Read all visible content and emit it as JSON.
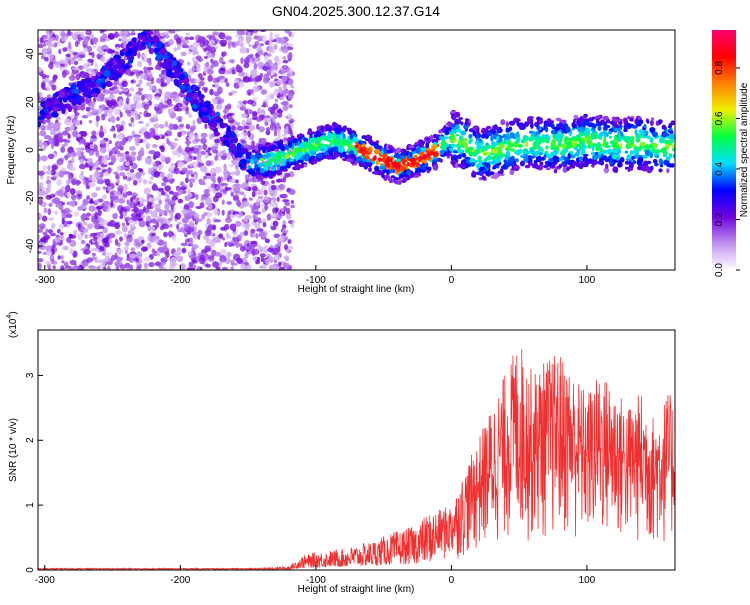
{
  "title": "GN04.2025.300.12.37.G14",
  "chart_data": [
    {
      "type": "heatmap",
      "xlabel": "Height of straight line (km)",
      "ylabel": "Frequency (Hz)",
      "xlim": [
        -305,
        165
      ],
      "ylim": [
        -50,
        50
      ],
      "xticks": [
        -300,
        -200,
        -100,
        0,
        100
      ],
      "xtick_labels": [
        "-300",
        "-200",
        "-100",
        "0",
        "100"
      ],
      "yticks": [
        -40,
        -20,
        0,
        20,
        40
      ],
      "ytick_labels": [
        "-40",
        "-20",
        "0",
        "20",
        "40"
      ],
      "colorbar": {
        "label": "Normalized spectral amplitude",
        "range": [
          0,
          0.95
        ],
        "ticks": [
          0.0,
          0.2,
          0.4,
          0.6,
          0.8
        ],
        "tick_labels": [
          "0.0",
          "0.2",
          "0.4",
          "0.6",
          "0.8"
        ],
        "colors": [
          "#ffffff",
          "#c090f0",
          "#7000e0",
          "#0000ff",
          "#00e0ff",
          "#00ff40",
          "#f0f000",
          "#ff8000",
          "#ff0000",
          "#ff0070"
        ]
      },
      "trace": {
        "x": [
          -305,
          -280,
          -260,
          -240,
          -225,
          -150,
          -130,
          -115,
          -100,
          -85,
          -70,
          -55,
          -40,
          -25,
          -10,
          0,
          10,
          20,
          40,
          60,
          80,
          100,
          120,
          140,
          165
        ],
        "y": [
          15,
          22,
          28,
          38,
          48,
          -6,
          -4,
          -1,
          2,
          4,
          1,
          -3,
          -7,
          -4,
          0,
          5,
          3,
          -2,
          1,
          3,
          2,
          4,
          2,
          3,
          1
        ]
      },
      "noise_region_x": [
        -305,
        -117
      ],
      "grid": false
    },
    {
      "type": "area",
      "xlabel": "Height of straight line (km)",
      "ylabel": "SNR (10 * v/v)",
      "multiplier_label": "(x10",
      "multiplier_exp": "4",
      "multiplier_close": ")",
      "xlim": [
        -305,
        165
      ],
      "ylim": [
        0,
        3.7
      ],
      "xticks": [
        -300,
        -200,
        -100,
        0,
        100
      ],
      "xtick_labels": [
        "-300",
        "-200",
        "-100",
        "0",
        "100"
      ],
      "yticks": [
        0,
        1,
        2,
        3
      ],
      "ytick_labels": [
        "0",
        "1",
        "2",
        "3"
      ],
      "envelope": {
        "x": [
          -305,
          -140,
          -120,
          -110,
          -100,
          -80,
          -60,
          -40,
          -30,
          -20,
          -10,
          0,
          10,
          20,
          30,
          40,
          50,
          60,
          70,
          80,
          90,
          100,
          110,
          120,
          130,
          140,
          150,
          160,
          165
        ],
        "y": [
          0.03,
          0.03,
          0.05,
          0.2,
          0.25,
          0.3,
          0.4,
          0.55,
          0.6,
          0.75,
          0.9,
          1.0,
          1.5,
          2.0,
          2.5,
          3.0,
          3.5,
          3.0,
          3.2,
          3.3,
          3.0,
          2.7,
          3.0,
          2.8,
          2.5,
          2.7,
          2.3,
          2.7,
          2.5
        ]
      },
      "color": "#f03030",
      "grid": false
    }
  ]
}
